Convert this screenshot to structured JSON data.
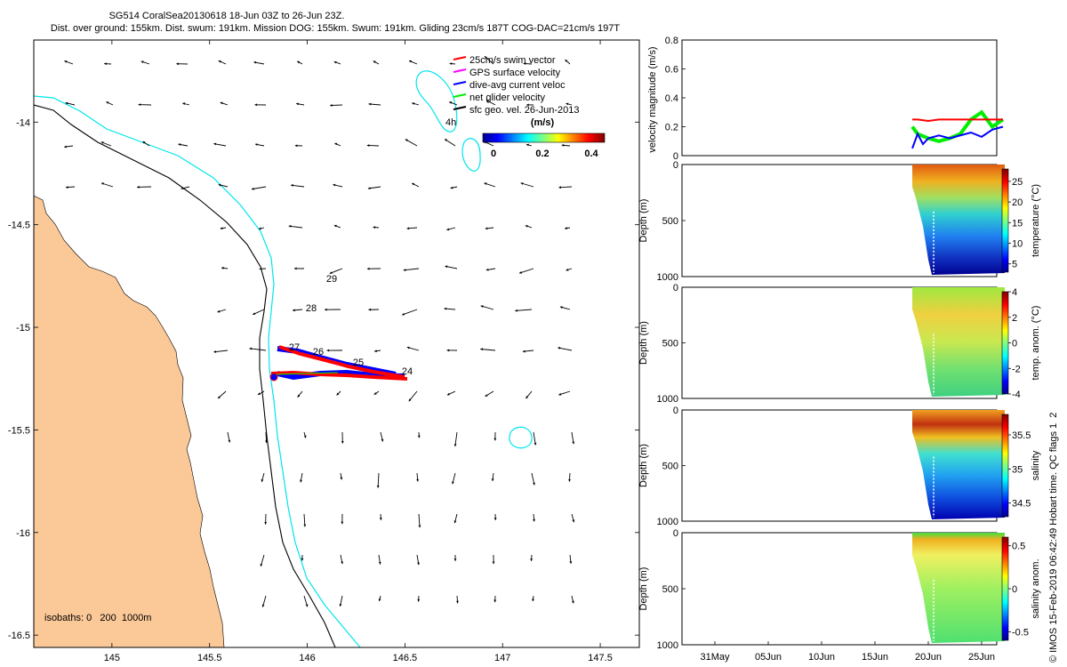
{
  "header": {
    "title_line1": "SG514 CoralSea20130618 18-Jun 03Z to 26-Jun 23Z.",
    "title_line2": "Dist. over ground: 155km. Dist. swum: 191km. Mission DOG: 155km. Swum: 191km. Gliding 23cm/s 187T COG-DAC=21cm/s 197T"
  },
  "map": {
    "x_ticks": [
      "145",
      "145.5",
      "146",
      "146.5",
      "147",
      "147.5"
    ],
    "y_ticks": [
      "-14",
      "-14.5",
      "-15",
      "-15.5",
      "-16",
      "-16.5"
    ],
    "isobaths_label": "isobaths: 0   200  1000m",
    "day_labels": [
      "29",
      "28",
      "27",
      "26",
      "25",
      "24"
    ],
    "legend": {
      "items": [
        {
          "label": "25cm/s swim vector",
          "color": "#ff0000"
        },
        {
          "label": "GPS surface velocity",
          "color": "#ff00ff"
        },
        {
          "label": "dive-avg current veloc",
          "color": "#0000ff"
        },
        {
          "label": "net glider velocity",
          "color": "#00ee00"
        },
        {
          "label": "sfc geo. vel. 26-Jun-2013",
          "color": "#000000"
        }
      ],
      "marker_label": "4h",
      "colorbar_title": "(m/s)",
      "colorbar_ticks": [
        "0",
        "0.2",
        "0.4"
      ]
    },
    "colors": {
      "land": "#fbc898",
      "isobath_200": "#00e5ee",
      "coast": "#000000",
      "track": "#ff0000",
      "dac": "#0000ff"
    }
  },
  "panels": {
    "velocity": {
      "ylabel": "velocity magnitude (m/s)",
      "y_ticks": [
        "0",
        "0.2",
        "0.4",
        "0.6",
        "0.8"
      ]
    },
    "temperature": {
      "ylabel": "Depth (m)",
      "y_ticks": [
        "0",
        "500",
        "1000"
      ],
      "cbar_label": "temperature (°C)",
      "cbar_ticks": [
        "25",
        "20",
        "15",
        "10",
        "5"
      ]
    },
    "temp_anom": {
      "ylabel": "Depth (m)",
      "y_ticks": [
        "0",
        "500",
        "1000"
      ],
      "cbar_label": "temp. anom. (°C)",
      "cbar_ticks": [
        "4",
        "2",
        "0",
        "-2",
        "-4"
      ]
    },
    "salinity": {
      "ylabel": "Depth (m)",
      "y_ticks": [
        "0",
        "500",
        "1000"
      ],
      "cbar_label": "salinity",
      "cbar_ticks": [
        "35.5",
        "35",
        "34.5"
      ]
    },
    "sal_anom": {
      "ylabel": "Depth (m)",
      "y_ticks": [
        "0",
        "500",
        "1000"
      ],
      "cbar_label": "salinity anom.",
      "cbar_ticks": [
        "0.5",
        "0",
        "-0.5"
      ]
    },
    "x_ticks": [
      "31May",
      "05Jun",
      "10Jun",
      "15Jun",
      "20Jun",
      "25Jun"
    ]
  },
  "footer": {
    "credit": "© IMOS 15-Feb-2019 06:42:49 Hobart time. QC flags 1  2"
  },
  "chart_data": [
    {
      "type": "scatter",
      "title": "SG514 CoralSea20130618 18-Jun 03Z to 26-Jun 23Z.",
      "xlim": [
        144.6,
        147.7
      ],
      "ylim": [
        -16.56,
        -13.6
      ],
      "series": [
        {
          "name": "25cm/s swim vector",
          "x": [
            145.82,
            146.0,
            146.2,
            146.35,
            146.5,
            146.3,
            146.1,
            145.9,
            145.8
          ],
          "y": [
            -15.1,
            -15.13,
            -15.17,
            -15.21,
            -15.26,
            -15.26,
            -15.24,
            -15.24,
            -15.25
          ]
        }
      ]
    },
    {
      "type": "line",
      "ylabel": "velocity magnitude (m/s)",
      "ylim": [
        0,
        0.8
      ],
      "x": [
        "31May",
        "05Jun",
        "10Jun",
        "15Jun",
        "20Jun",
        "25Jun"
      ],
      "series": [
        {
          "name": "25cm/s swim vector",
          "x": [
            18.5,
            19,
            20,
            21,
            22,
            23,
            24,
            25,
            26,
            27
          ],
          "values": [
            0.25,
            0.25,
            0.24,
            0.25,
            0.25,
            0.25,
            0.25,
            0.25,
            0.25,
            0.25
          ]
        },
        {
          "name": "dive-avg current veloc",
          "x": [
            18.5,
            19,
            19.5,
            20,
            21,
            22,
            23,
            24,
            25,
            26,
            27
          ],
          "values": [
            0.05,
            0.15,
            0.08,
            0.12,
            0.14,
            0.12,
            0.14,
            0.16,
            0.13,
            0.18,
            0.2
          ]
        },
        {
          "name": "net glider velocity",
          "x": [
            18.5,
            19,
            20,
            21,
            22,
            23,
            24,
            25,
            26,
            27
          ],
          "values": [
            0.2,
            0.15,
            0.12,
            0.1,
            0.12,
            0.15,
            0.25,
            0.3,
            0.2,
            0.25
          ]
        }
      ]
    }
  ]
}
